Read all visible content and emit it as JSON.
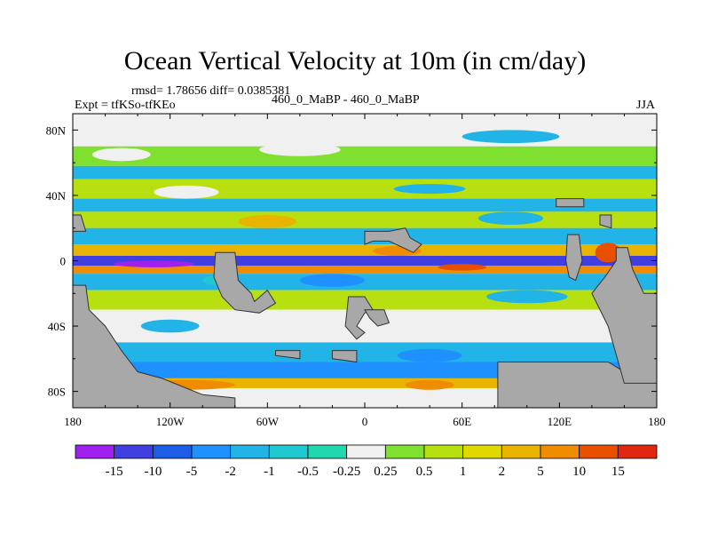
{
  "header": {
    "title": "Ocean Vertical Velocity at 10m (in cm/day)",
    "stats": "rmsd= 1.78656 diff= 0.0385381",
    "left_label": "Expt = tfKSo-tfKEo",
    "center_label": "460_0_MaBP - 460_0_MaBP",
    "right_label": "JJA"
  },
  "chart_data": {
    "type": "heatmap",
    "title": "Ocean Vertical Velocity at 10m (in cm/day)",
    "x_axis": {
      "range": [
        -180,
        180
      ],
      "ticks": [
        {
          "value": -180,
          "label": "180"
        },
        {
          "value": -120,
          "label": "120W"
        },
        {
          "value": -60,
          "label": "60W"
        },
        {
          "value": 0,
          "label": "0"
        },
        {
          "value": 60,
          "label": "60E"
        },
        {
          "value": 120,
          "label": "120E"
        },
        {
          "value": 180,
          "label": "180"
        }
      ]
    },
    "y_axis": {
      "range": [
        -90,
        90
      ],
      "ticks": [
        {
          "value": 80,
          "label": "80N"
        },
        {
          "value": 40,
          "label": "40N"
        },
        {
          "value": 0,
          "label": "0"
        },
        {
          "value": -40,
          "label": "40S"
        },
        {
          "value": -80,
          "label": "80S"
        }
      ]
    },
    "colorbar": {
      "levels": [
        "-15",
        "-10",
        "-5",
        "-2",
        "-1",
        "-0.5",
        "-0.25",
        "0.25",
        "0.5",
        "1",
        "2",
        "5",
        "10",
        "15"
      ],
      "colors": [
        "#a020f0",
        "#4040e0",
        "#1e5ee6",
        "#1e90ff",
        "#22b4e6",
        "#20c8d2",
        "#20d8b0",
        "#f0f0f0",
        "#80e030",
        "#b8e010",
        "#e0d800",
        "#e8b400",
        "#f08c00",
        "#e85000",
        "#e02810"
      ]
    },
    "land_color": "#a8a8a8",
    "bands": [
      {
        "lat": [
          70,
          85
        ],
        "level": 7
      },
      {
        "lat": [
          58,
          70
        ],
        "level": 8
      },
      {
        "lat": [
          50,
          58
        ],
        "level": 4
      },
      {
        "lat": [
          38,
          50
        ],
        "level": 9
      },
      {
        "lat": [
          30,
          38
        ],
        "level": 4
      },
      {
        "lat": [
          20,
          30
        ],
        "level": 9
      },
      {
        "lat": [
          10,
          20
        ],
        "level": 4
      },
      {
        "lat": [
          3,
          10
        ],
        "level": 11
      },
      {
        "lat": [
          -3,
          3
        ],
        "level": 1
      },
      {
        "lat": [
          -8,
          -3
        ],
        "level": 12
      },
      {
        "lat": [
          -18,
          -8
        ],
        "level": 4
      },
      {
        "lat": [
          -30,
          -18
        ],
        "level": 9
      },
      {
        "lat": [
          -50,
          -30
        ],
        "level": 7
      },
      {
        "lat": [
          -62,
          -50
        ],
        "level": 4
      },
      {
        "lat": [
          -72,
          -62
        ],
        "level": 3
      },
      {
        "lat": [
          -78,
          -72
        ],
        "level": 11
      }
    ],
    "land": [
      [
        [
          -180,
          -15
        ],
        [
          -172,
          -15
        ],
        [
          -170,
          -30
        ],
        [
          -160,
          -40
        ],
        [
          -150,
          -55
        ],
        [
          -140,
          -68
        ],
        [
          -125,
          -72
        ],
        [
          -110,
          -78
        ],
        [
          -100,
          -82
        ],
        [
          -80,
          -84
        ],
        [
          -80,
          -90
        ],
        [
          -180,
          -90
        ]
      ],
      [
        [
          -92,
          5
        ],
        [
          -80,
          5
        ],
        [
          -78,
          -12
        ],
        [
          -70,
          -20
        ],
        [
          -68,
          -25
        ],
        [
          -60,
          -18
        ],
        [
          -55,
          -26
        ],
        [
          -65,
          -32
        ],
        [
          -80,
          -30
        ],
        [
          -88,
          -22
        ],
        [
          -93,
          -10
        ]
      ],
      [
        [
          -10,
          -22
        ],
        [
          0,
          -22
        ],
        [
          5,
          -30
        ],
        [
          0,
          -32
        ],
        [
          -5,
          -40
        ],
        [
          0,
          -44
        ],
        [
          -5,
          -48
        ],
        [
          -12,
          -40
        ]
      ],
      [
        [
          0,
          -30
        ],
        [
          12,
          -30
        ],
        [
          15,
          -38
        ],
        [
          8,
          -40
        ],
        [
          3,
          -35
        ]
      ],
      [
        [
          0,
          18
        ],
        [
          15,
          18
        ],
        [
          25,
          20
        ],
        [
          28,
          14
        ],
        [
          35,
          10
        ],
        [
          30,
          5
        ],
        [
          15,
          12
        ],
        [
          5,
          12
        ],
        [
          0,
          10
        ]
      ],
      [
        [
          -55,
          -55
        ],
        [
          -40,
          -55
        ],
        [
          -40,
          -60
        ],
        [
          -55,
          -58
        ]
      ],
      [
        [
          -20,
          -55
        ],
        [
          -5,
          -55
        ],
        [
          -5,
          -62
        ],
        [
          -20,
          -60
        ]
      ],
      [
        [
          82,
          -62
        ],
        [
          150,
          -62
        ],
        [
          160,
          -68
        ],
        [
          180,
          -70
        ],
        [
          180,
          -90
        ],
        [
          82,
          -90
        ]
      ],
      [
        [
          155,
          8
        ],
        [
          162,
          8
        ],
        [
          165,
          -5
        ],
        [
          172,
          -20
        ],
        [
          180,
          -20
        ],
        [
          180,
          -75
        ],
        [
          160,
          -75
        ],
        [
          150,
          -40
        ],
        [
          140,
          -20
        ],
        [
          148,
          -10
        ],
        [
          155,
          0
        ]
      ],
      [
        [
          125,
          16
        ],
        [
          132,
          16
        ],
        [
          134,
          0
        ],
        [
          130,
          -12
        ],
        [
          126,
          -10
        ],
        [
          124,
          0
        ]
      ],
      [
        [
          145,
          28
        ],
        [
          152,
          28
        ],
        [
          152,
          20
        ],
        [
          145,
          22
        ]
      ],
      [
        [
          118,
          38
        ],
        [
          135,
          38
        ],
        [
          135,
          33
        ],
        [
          118,
          33
        ]
      ],
      [
        [
          -180,
          28
        ],
        [
          -175,
          28
        ],
        [
          -172,
          18
        ],
        [
          -180,
          18
        ]
      ]
    ],
    "patches": [
      {
        "c": [
          -150,
          65
        ],
        "r": [
          18,
          4
        ],
        "level": 7
      },
      {
        "c": [
          -40,
          68
        ],
        "r": [
          25,
          4
        ],
        "level": 7
      },
      {
        "c": [
          90,
          76
        ],
        "r": [
          30,
          4
        ],
        "level": 4
      },
      {
        "c": [
          -110,
          42
        ],
        "r": [
          20,
          4
        ],
        "level": 7
      },
      {
        "c": [
          40,
          44
        ],
        "r": [
          22,
          3
        ],
        "level": 4
      },
      {
        "c": [
          -60,
          24
        ],
        "r": [
          18,
          4
        ],
        "level": 11
      },
      {
        "c": [
          90,
          26
        ],
        "r": [
          20,
          4
        ],
        "level": 4
      },
      {
        "c": [
          20,
          6
        ],
        "r": [
          15,
          3
        ],
        "level": 12
      },
      {
        "c": [
          -130,
          -2
        ],
        "r": [
          25,
          2
        ],
        "level": 0
      },
      {
        "c": [
          60,
          -4
        ],
        "r": [
          15,
          2
        ],
        "level": 13
      },
      {
        "c": [
          -20,
          -12
        ],
        "r": [
          20,
          4
        ],
        "level": 3
      },
      {
        "c": [
          100,
          -22
        ],
        "r": [
          25,
          4
        ],
        "level": 4
      },
      {
        "c": [
          -120,
          -40
        ],
        "r": [
          18,
          4
        ],
        "level": 4
      },
      {
        "c": [
          40,
          -58
        ],
        "r": [
          20,
          4
        ],
        "level": 3
      },
      {
        "c": [
          -110,
          -76
        ],
        "r": [
          30,
          3
        ],
        "level": 12
      },
      {
        "c": [
          40,
          -76
        ],
        "r": [
          15,
          3
        ],
        "level": 12
      },
      {
        "c": [
          150,
          5
        ],
        "r": [
          8,
          6
        ],
        "level": 13
      },
      {
        "c": [
          -90,
          -12
        ],
        "r": [
          10,
          3
        ],
        "level": 5
      }
    ]
  }
}
